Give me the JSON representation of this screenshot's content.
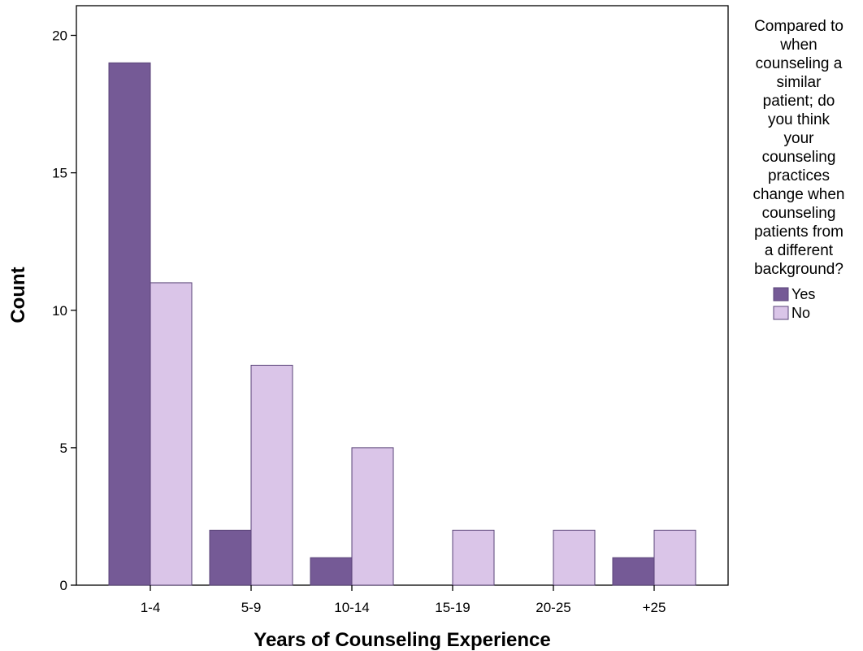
{
  "chart_data": {
    "type": "bar",
    "title": "",
    "xlabel": "Years of Counseling Experience",
    "ylabel": "Count",
    "categories": [
      "1-4",
      "5-9",
      "10-14",
      "15-19",
      "20-25",
      "+25"
    ],
    "series": [
      {
        "name": "Yes",
        "values": [
          19,
          2,
          1,
          0,
          0,
          1
        ],
        "color": "#755a96"
      },
      {
        "name": "No",
        "values": [
          11,
          8,
          5,
          2,
          2,
          2
        ],
        "color": "#dac5e8"
      }
    ],
    "bar_edge_color": "#5a4478",
    "ylim": [
      0,
      20.5
    ],
    "yticks": [
      0,
      5,
      10,
      15,
      20
    ],
    "grid": false,
    "legend": {
      "position": "right",
      "title_lines": [
        "Compared to",
        "when",
        "counseling a",
        "similar",
        "patient; do",
        "you think",
        "your",
        "counseling",
        "practices",
        "change when",
        "counseling",
        "patients from",
        "a different",
        "background?"
      ],
      "entries": [
        "Yes",
        "No"
      ]
    }
  }
}
